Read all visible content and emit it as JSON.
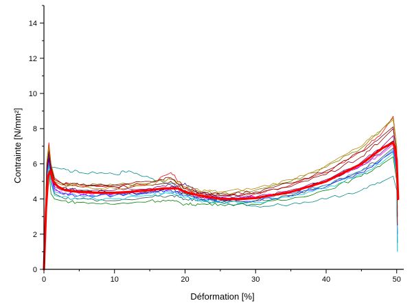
{
  "chart_data": {
    "type": "line",
    "xlabel": "Déformation [%]",
    "ylabel": "Contrainte [N/mm²]",
    "xlim": [
      0,
      51
    ],
    "ylim": [
      0,
      15
    ],
    "xticks": [
      0,
      10,
      20,
      30,
      40,
      50
    ],
    "yticks": [
      0,
      2,
      4,
      6,
      8,
      10,
      12,
      14
    ],
    "grid": false,
    "legend": "none",
    "colors": [
      "#000000",
      "#ff0000",
      "#0000ff",
      "#008000",
      "#008b8b",
      "#800080",
      "#808000",
      "#4b0082",
      "#8b0000",
      "#ff00ff",
      "#2f4f4f",
      "#b8860b",
      "#1e90ff",
      "#00ced1",
      "#800000"
    ],
    "mean_color": "#ff0000",
    "series": [
      {
        "x": [
          0,
          0.4,
          0.7,
          1,
          1.5,
          2.5,
          5,
          10,
          15,
          18,
          20,
          22,
          25,
          30,
          35,
          40,
          45,
          48,
          49.5,
          50,
          50.1
        ],
        "values": [
          0,
          5.5,
          6.2,
          5.5,
          4.9,
          4.6,
          4.5,
          4.4,
          4.5,
          4.6,
          4.3,
          4.1,
          3.95,
          4.0,
          4.4,
          5.0,
          6.0,
          6.9,
          7.3,
          6.0,
          4.0
        ]
      },
      {
        "x": [
          0,
          0.4,
          0.7,
          1,
          1.5,
          2.5,
          5,
          10,
          15,
          18,
          20,
          22,
          25,
          30,
          35,
          40,
          45,
          48,
          49.5,
          50,
          50.1
        ],
        "values": [
          0,
          6.0,
          7.2,
          6.0,
          5.2,
          4.9,
          4.8,
          4.7,
          4.9,
          5.5,
          4.6,
          4.3,
          4.2,
          4.3,
          4.8,
          5.5,
          6.7,
          7.8,
          8.7,
          7.0,
          3.0
        ]
      },
      {
        "x": [
          0,
          0.4,
          0.7,
          1,
          1.5,
          2.5,
          5,
          10,
          15,
          18,
          20,
          22,
          25,
          30,
          35,
          40,
          45,
          48,
          49.5,
          50,
          50.1
        ],
        "values": [
          0,
          5.3,
          6.4,
          5.3,
          4.6,
          4.3,
          4.2,
          4.2,
          4.4,
          4.5,
          4.2,
          4.0,
          3.9,
          3.9,
          4.2,
          4.7,
          5.5,
          6.3,
          6.7,
          5.5,
          2.0
        ]
      },
      {
        "x": [
          0,
          0.4,
          0.7,
          1,
          1.5,
          2.5,
          5,
          10,
          15,
          18,
          20,
          22,
          25,
          30,
          35,
          40,
          45,
          48,
          49.5,
          50,
          50.1
        ],
        "values": [
          0,
          4.5,
          5.6,
          4.3,
          4.0,
          3.9,
          3.8,
          3.7,
          3.9,
          3.9,
          3.7,
          3.7,
          3.7,
          3.7,
          4.0,
          4.5,
          5.3,
          6.0,
          6.4,
          5.0,
          1.5
        ]
      },
      {
        "x": [
          0,
          0.4,
          0.7,
          1,
          1.5,
          2.5,
          5,
          10,
          12,
          15,
          18,
          20,
          22,
          25,
          30,
          35,
          40,
          45,
          48,
          49.5,
          50,
          50.1
        ],
        "values": [
          0,
          5.4,
          6.5,
          5.8,
          5.8,
          5.7,
          5.5,
          5.4,
          5.6,
          5.2,
          4.9,
          4.3,
          4.0,
          3.8,
          3.6,
          3.7,
          4.0,
          4.5,
          5.0,
          5.3,
          4.5,
          1.0
        ]
      },
      {
        "x": [
          0,
          0.4,
          0.7,
          1,
          1.5,
          2.5,
          5,
          10,
          15,
          18,
          20,
          22,
          25,
          30,
          35,
          40,
          45,
          48,
          49.5,
          50,
          50.1
        ],
        "values": [
          0,
          5.6,
          6.6,
          5.6,
          4.8,
          4.6,
          4.5,
          4.5,
          4.6,
          4.8,
          4.4,
          4.2,
          4.1,
          4.1,
          4.5,
          5.1,
          6.1,
          7.0,
          7.6,
          6.0,
          2.5
        ]
      },
      {
        "x": [
          0,
          0.4,
          0.7,
          1,
          1.5,
          2.5,
          5,
          10,
          15,
          18,
          20,
          22,
          25,
          30,
          35,
          40,
          45,
          48,
          49.5,
          50,
          50.1
        ],
        "values": [
          0,
          6.1,
          7.0,
          6.0,
          5.1,
          4.9,
          4.8,
          4.8,
          4.9,
          5.1,
          4.6,
          4.4,
          4.3,
          4.5,
          5.0,
          5.8,
          6.9,
          8.0,
          8.6,
          7.0,
          3.5
        ]
      },
      {
        "x": [
          0,
          0.4,
          0.7,
          1,
          1.5,
          2.5,
          5,
          10,
          15,
          18,
          20,
          22,
          25,
          30,
          35,
          40,
          45,
          48,
          49.5,
          50,
          50.1
        ],
        "values": [
          0,
          5.5,
          6.3,
          5.4,
          4.7,
          4.5,
          4.4,
          4.3,
          4.4,
          4.7,
          4.9,
          4.3,
          4.1,
          4.1,
          4.4,
          5.0,
          5.9,
          6.7,
          7.2,
          5.8,
          2.0
        ]
      },
      {
        "x": [
          0,
          0.4,
          0.7,
          1,
          1.5,
          2.5,
          5,
          10,
          15,
          18,
          20,
          22,
          25,
          30,
          35,
          40,
          45,
          48,
          49.5,
          50,
          50.1
        ],
        "values": [
          0,
          5.7,
          6.8,
          5.7,
          5.0,
          4.8,
          4.7,
          4.7,
          4.8,
          5.0,
          4.5,
          4.3,
          4.2,
          4.3,
          4.7,
          5.4,
          6.4,
          7.4,
          8.0,
          6.5,
          3.0
        ]
      },
      {
        "x": [
          0,
          0.4,
          0.7,
          1,
          1.5,
          2.5,
          5,
          10,
          15,
          18,
          20,
          22,
          25,
          30,
          35,
          40,
          45,
          48,
          49.5,
          50,
          50.1
        ],
        "values": [
          0,
          5.2,
          6.1,
          5.2,
          4.5,
          4.4,
          4.3,
          4.3,
          4.5,
          4.6,
          4.4,
          4.1,
          4.0,
          4.1,
          4.4,
          5.0,
          5.9,
          6.6,
          7.1,
          5.7,
          2.0
        ]
      },
      {
        "x": [
          0,
          0.4,
          0.7,
          1,
          1.5,
          2.5,
          5,
          10,
          15,
          18,
          20,
          22,
          25,
          30,
          35,
          40,
          45,
          48,
          49.5,
          50,
          50.1
        ],
        "values": [
          0,
          5.0,
          6.0,
          5.0,
          4.3,
          4.1,
          4.0,
          3.9,
          4.1,
          4.2,
          4.0,
          3.9,
          3.8,
          3.9,
          4.2,
          4.8,
          5.6,
          6.4,
          6.9,
          5.5,
          1.5
        ]
      },
      {
        "x": [
          0,
          0.4,
          0.7,
          1,
          1.5,
          2.5,
          5,
          10,
          15,
          18,
          20,
          22,
          25,
          30,
          35,
          40,
          45,
          48,
          49.5,
          50,
          50.1
        ],
        "values": [
          0,
          6.0,
          6.9,
          5.9,
          5.0,
          4.8,
          4.7,
          4.6,
          4.8,
          5.2,
          4.7,
          4.5,
          4.4,
          4.6,
          5.1,
          5.9,
          7.0,
          8.0,
          8.5,
          7.0,
          3.0
        ]
      },
      {
        "x": [
          0,
          0.4,
          0.7,
          1,
          1.5,
          2.5,
          5,
          10,
          15,
          18,
          20,
          22,
          25,
          30,
          35,
          40,
          45,
          48,
          49.5,
          50,
          50.1
        ],
        "values": [
          0,
          5.1,
          6.0,
          5.0,
          4.4,
          4.3,
          4.2,
          4.2,
          4.3,
          4.4,
          4.2,
          4.0,
          3.9,
          4.0,
          4.3,
          4.8,
          5.6,
          6.3,
          6.8,
          5.4,
          1.5
        ]
      },
      {
        "x": [
          0,
          0.4,
          0.7,
          1,
          1.5,
          2.5,
          5,
          10,
          15,
          18,
          20,
          22,
          25,
          30,
          35,
          40,
          45,
          48,
          49.5,
          50,
          50.1
        ],
        "values": [
          0,
          4.9,
          5.9,
          4.9,
          4.2,
          4.1,
          4.0,
          4.0,
          4.2,
          4.3,
          4.1,
          3.9,
          3.8,
          3.8,
          4.1,
          4.6,
          5.4,
          6.1,
          6.6,
          5.3,
          1.0
        ]
      },
      {
        "x": [
          0,
          0.4,
          0.7,
          1,
          1.5,
          2.5,
          5,
          10,
          15,
          18,
          20,
          22,
          25,
          30,
          35,
          40,
          45,
          48,
          49.5,
          50,
          50.1
        ],
        "values": [
          0,
          5.8,
          6.7,
          5.8,
          5.1,
          4.9,
          4.8,
          4.8,
          5.0,
          5.2,
          4.6,
          4.4,
          4.3,
          4.4,
          4.9,
          5.6,
          6.7,
          7.6,
          8.1,
          6.6,
          2.5
        ]
      }
    ],
    "mean": {
      "x": [
        0,
        0.3,
        0.6,
        0.9,
        1.3,
        2,
        3,
        5,
        8,
        10,
        12,
        15,
        17,
        19,
        20,
        22,
        25,
        28,
        30,
        35,
        40,
        45,
        48,
        49.5,
        49.8,
        50,
        50.2
      ],
      "values": [
        0,
        3.5,
        5.3,
        5.6,
        5.0,
        4.7,
        4.5,
        4.4,
        4.35,
        4.35,
        4.4,
        4.5,
        4.6,
        4.6,
        4.4,
        4.2,
        4.0,
        4.0,
        4.05,
        4.4,
        5.0,
        6.0,
        6.9,
        7.2,
        6.8,
        6.2,
        4.0
      ]
    }
  }
}
